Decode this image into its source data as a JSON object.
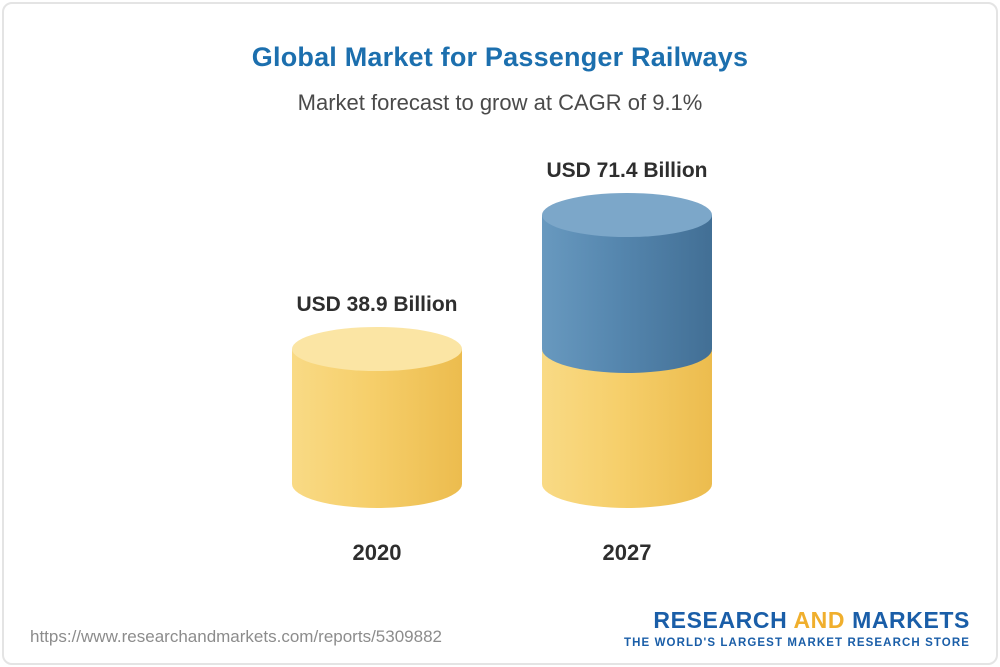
{
  "header": {
    "title": "Global Market for Passenger Railways",
    "subtitle": "Market forecast to grow at CAGR of 9.1%"
  },
  "chart_data": {
    "type": "bar",
    "title": "Global Market for Passenger Railways",
    "subtitle": "Market forecast to grow at CAGR of 9.1%",
    "categories": [
      "2020",
      "2027"
    ],
    "values": [
      38.9,
      71.4
    ],
    "value_labels": [
      "USD 38.9 Billion",
      "USD 71.4 Billion"
    ],
    "unit": "USD Billion",
    "legend": "none",
    "grid": false,
    "bar_style": "3d-cylinder",
    "colors": {
      "base_segment": "#f6cf6b",
      "growth_segment": "#5586ae"
    },
    "notes": "2027 cylinder is stacked: yellow base equal to 2020 value, blue segment on top represents growth to 71.4"
  },
  "footer": {
    "url": "https://www.researchandmarkets.com/reports/5309882",
    "logo": {
      "word1": "RESEARCH",
      "word2": "AND",
      "word3": "MARKETS",
      "tagline": "THE WORLD'S LARGEST MARKET RESEARCH STORE"
    }
  }
}
